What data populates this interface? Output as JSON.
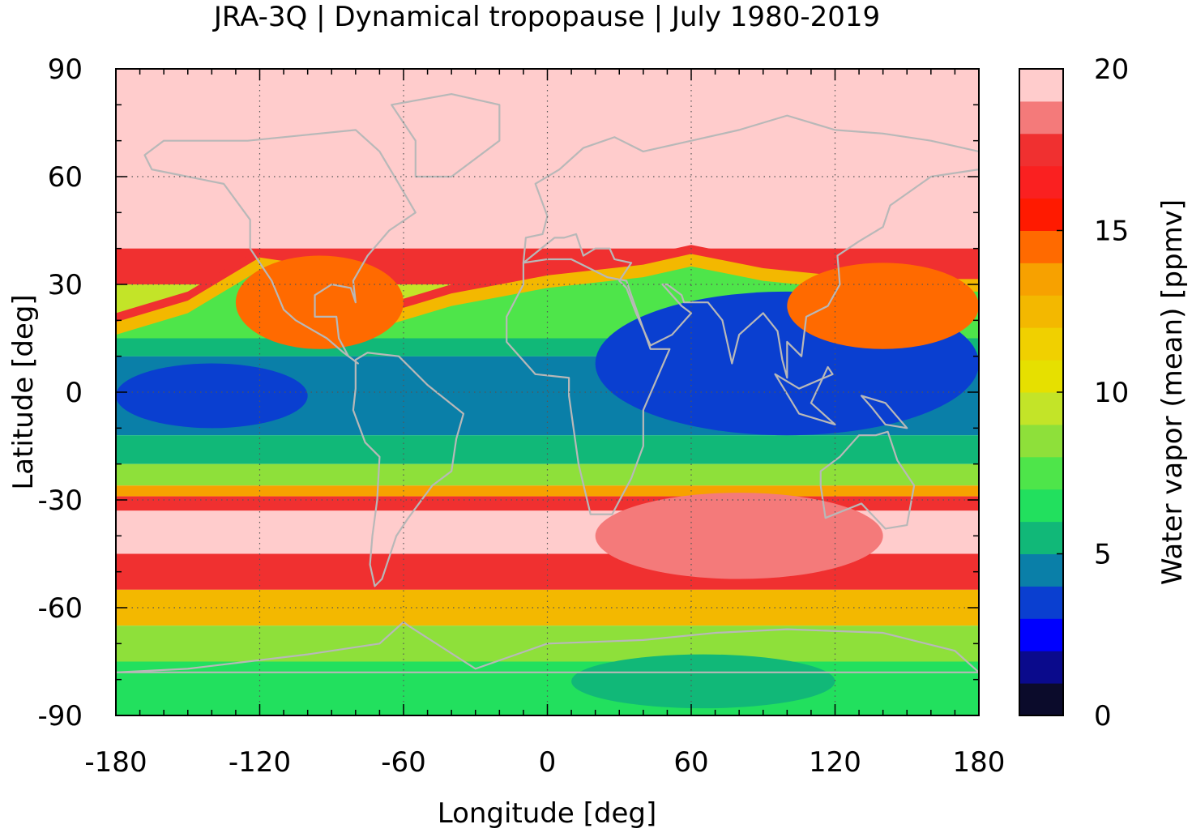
{
  "chart_data": {
    "type": "heatmap",
    "title": "JRA-3Q | Dynamical tropopause | July 1980-2019",
    "xlabel": "Longitude [deg]",
    "ylabel": "Latitude [deg]",
    "xlim": [
      -180,
      180
    ],
    "ylim": [
      -90,
      90
    ],
    "xticks": [
      "-180",
      "-120",
      "-60",
      "0",
      "60",
      "120",
      "180"
    ],
    "yticks": [
      "90",
      "60",
      "30",
      "0",
      "-30",
      "-60",
      "-90"
    ],
    "grid": true,
    "colorbar": {
      "label": "Water vapor (mean) [ppmv]",
      "range": [
        0,
        20
      ],
      "ticks": [
        "0",
        "5",
        "10",
        "15",
        "20"
      ],
      "levels": [
        {
          "from": 0,
          "to": 1,
          "color": "#0b0b2b"
        },
        {
          "from": 1,
          "to": 2,
          "color": "#0a0a8c"
        },
        {
          "from": 2,
          "to": 3,
          "color": "#0000ff"
        },
        {
          "from": 3,
          "to": 4,
          "color": "#0a3fd0"
        },
        {
          "from": 4,
          "to": 5,
          "color": "#0a7fa8"
        },
        {
          "from": 5,
          "to": 6,
          "color": "#11b878"
        },
        {
          "from": 6,
          "to": 7,
          "color": "#22e05e"
        },
        {
          "from": 7,
          "to": 8,
          "color": "#4ee54a"
        },
        {
          "from": 8,
          "to": 9,
          "color": "#8ee03a"
        },
        {
          "from": 9,
          "to": 10,
          "color": "#c3e428"
        },
        {
          "from": 10,
          "to": 11,
          "color": "#e6e000"
        },
        {
          "from": 11,
          "to": 12,
          "color": "#f0d000"
        },
        {
          "from": 12,
          "to": 13,
          "color": "#f3b800"
        },
        {
          "from": 13,
          "to": 14,
          "color": "#f7a100"
        },
        {
          "from": 14,
          "to": 15,
          "color": "#ff6a00"
        },
        {
          "from": 15,
          "to": 16,
          "color": "#ff1a00"
        },
        {
          "from": 16,
          "to": 17,
          "color": "#fa2020"
        },
        {
          "from": 17,
          "to": 18,
          "color": "#f03030"
        },
        {
          "from": 18,
          "to": 19,
          "color": "#f47a7a"
        },
        {
          "from": 19,
          "to": 20,
          "color": "#ffcccc"
        }
      ]
    },
    "zonal_structure": [
      {
        "lat_band": [
          40,
          90
        ],
        "value": 19.5
      },
      {
        "lat_band": [
          30,
          40
        ],
        "value": 17
      },
      {
        "lat_band": [
          20,
          30
        ],
        "value": 9
      },
      {
        "lat_band": [
          10,
          20
        ],
        "value": 6
      },
      {
        "lat_band": [
          -12,
          10
        ],
        "value": 4.5
      },
      {
        "lat_band": [
          -20,
          -12
        ],
        "value": 5
      },
      {
        "lat_band": [
          -26,
          -20
        ],
        "value": 8
      },
      {
        "lat_band": [
          -29,
          -26
        ],
        "value": 13
      },
      {
        "lat_band": [
          -33,
          -29
        ],
        "value": 17
      },
      {
        "lat_band": [
          -45,
          -33
        ],
        "value": 19.5
      },
      {
        "lat_band": [
          -55,
          -45
        ],
        "value": 17
      },
      {
        "lat_band": [
          -65,
          -55
        ],
        "value": 12
      },
      {
        "lat_band": [
          -75,
          -65
        ],
        "value": 8
      },
      {
        "lat_band": [
          -90,
          -75
        ],
        "value": 6.5
      }
    ],
    "features": [
      {
        "name": "tropical dry core east",
        "lon": [
          20,
          180
        ],
        "lat": [
          -12,
          28
        ],
        "value": 3.5
      },
      {
        "name": "tropical dry core west",
        "lon": [
          -180,
          -100
        ],
        "lat": [
          -10,
          8
        ],
        "value": 3.5
      },
      {
        "name": "north american monsoon",
        "lon": [
          -130,
          -60
        ],
        "lat": [
          12,
          38
        ],
        "value": 14
      },
      {
        "name": "asian monsoon",
        "lon": [
          100,
          180
        ],
        "lat": [
          12,
          36
        ],
        "value": 14
      },
      {
        "name": "antarctic minimum",
        "lon": [
          10,
          120
        ],
        "lat": [
          -88,
          -73
        ],
        "value": 5.5
      }
    ]
  }
}
